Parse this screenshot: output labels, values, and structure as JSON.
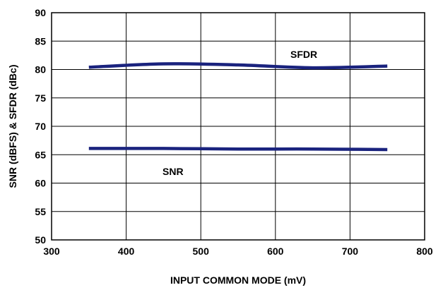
{
  "chart_data": {
    "type": "line",
    "title": "",
    "xlabel": "INPUT COMMON MODE (mV)",
    "ylabel": "SNR (dBFS) & SFDR (dBc)",
    "xlim": [
      300,
      800
    ],
    "ylim": [
      50,
      90
    ],
    "xticks": [
      "300",
      "400",
      "500",
      "600",
      "700",
      "800"
    ],
    "yticks": [
      "50",
      "55",
      "60",
      "65",
      "70",
      "75",
      "80",
      "85",
      "90"
    ],
    "grid": true,
    "legend": "none",
    "line_color": "#1a237e",
    "series": [
      {
        "name": "SFDR",
        "x": [
          350,
          450,
          550,
          650,
          750
        ],
        "values": [
          80.4,
          81.0,
          80.8,
          80.3,
          80.6
        ]
      },
      {
        "name": "SNR",
        "x": [
          350,
          450,
          550,
          650,
          750
        ],
        "values": [
          66.1,
          66.1,
          66.0,
          66.0,
          65.9
        ]
      }
    ]
  }
}
